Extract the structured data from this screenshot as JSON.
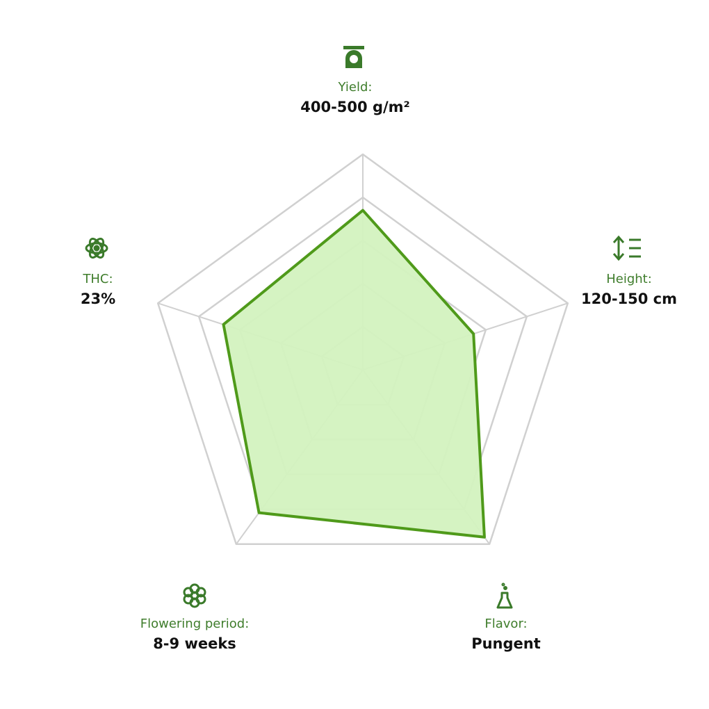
{
  "chart_data": {
    "type": "radar",
    "categories": [
      "Yield:",
      "Height:",
      "Flavor:",
      "Flowering period:",
      "THC:"
    ],
    "category_values": [
      "400-500 g/m²",
      "120-150 cm",
      "Pungent",
      "8-9 weeks",
      "23%"
    ],
    "values": [
      3.7,
      2.7,
      4.8,
      4.1,
      3.4
    ],
    "color": "#4f9a1a",
    "fill": "#d3f2bf",
    "ylim": [
      0,
      5
    ],
    "yticks": [
      1,
      2,
      3,
      4,
      5
    ],
    "grid": true
  }
}
